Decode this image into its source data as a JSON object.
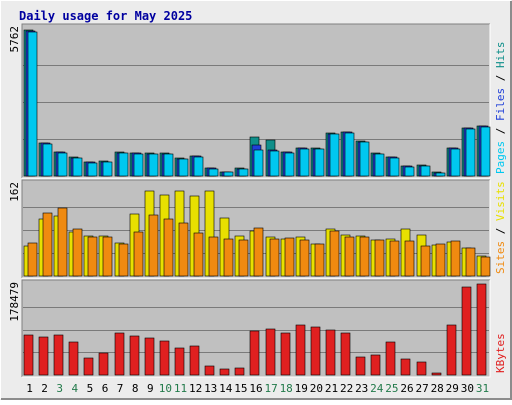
{
  "colors": {
    "frame_bg": "#ececec",
    "frame_light": "#ffffff",
    "frame_dark": "#8c8c8c",
    "panel_bg": "#c0c0c0",
    "gridline": "#7a7a7a",
    "title": "#0000a0",
    "axis_value": "#000000",
    "weekday_label": "#000000",
    "weekend_label": "#227a4a",
    "hits": "#0f8f8a",
    "files": "#1f3fd8",
    "pages": "#00c8f0",
    "visits": "#e8e000",
    "sites": "#f08a10",
    "kbytes": "#e02020",
    "label_separator": "#000000"
  },
  "chart_data": {
    "type": "bar",
    "title": "Daily usage for May 2025",
    "categories": [
      "1",
      "2",
      "3",
      "4",
      "5",
      "6",
      "7",
      "8",
      "9",
      "10",
      "11",
      "12",
      "13",
      "14",
      "15",
      "16",
      "17",
      "18",
      "19",
      "20",
      "21",
      "22",
      "23",
      "24",
      "25",
      "26",
      "27",
      "28",
      "29",
      "30",
      "31"
    ],
    "weekend_days": [
      "3",
      "4",
      "10",
      "11",
      "17",
      "18",
      "24",
      "25",
      "31"
    ],
    "grid": true,
    "panels": [
      {
        "id": "hits",
        "max_label": "5762",
        "ylim": [
          0,
          5762
        ],
        "series": [
          {
            "name": "Hits",
            "color_key": "hits",
            "values": [
              5700,
              1300,
              950,
              740,
              540,
              580,
              920,
              900,
              890,
              880,
              700,
              780,
              320,
              160,
              300,
              1500,
              1400,
              940,
              1100,
              1080,
              1660,
              1720,
              1360,
              880,
              750,
              400,
              420,
              140,
              1100,
              1880,
              1950
            ]
          },
          {
            "name": "Files",
            "color_key": "files",
            "values": [
              5650,
              1270,
              920,
              720,
              530,
              560,
              900,
              880,
              870,
              860,
              680,
              760,
              300,
              150,
              290,
              1200,
              1000,
              920,
              1080,
              1060,
              1640,
              1700,
              1340,
              860,
              730,
              380,
              400,
              130,
              1080,
              1850,
              1930
            ]
          },
          {
            "name": "Pages",
            "color_key": "pages",
            "values": [
              5600,
              1250,
              900,
              700,
              520,
              550,
              880,
              860,
              850,
              840,
              660,
              740,
              280,
              140,
              270,
              1000,
              980,
              900,
              1050,
              1040,
              1620,
              1680,
              1320,
              840,
              710,
              360,
              380,
              120,
              1060,
              1830,
              1900
            ]
          }
        ],
        "legend_labels": [
          "Pages",
          "Files",
          "Hits"
        ]
      },
      {
        "id": "visits",
        "max_label": "162",
        "ylim": [
          0,
          162
        ],
        "series": [
          {
            "name": "Visits",
            "color_key": "visits",
            "values": [
              53,
              100,
              106,
              78,
              71,
              71,
              58,
              110,
              150,
              142,
              150,
              140,
              150,
              102,
              70,
              80,
              68,
              65,
              68,
              56,
              82,
              72,
              70,
              63,
              65,
              83,
              72,
              55,
              60,
              50,
              35
            ]
          },
          {
            "name": "Sites",
            "color_key": "sites",
            "values": [
              58,
              111,
              120,
              82,
              68,
              68,
              57,
              78,
              107,
              100,
              93,
              76,
              69,
              65,
              64,
              85,
              66,
              67,
              64,
              56,
              80,
              68,
              69,
              63,
              61,
              61,
              53,
              56,
              62,
              49,
              34
            ]
          }
        ],
        "legend_labels": [
          "Sites",
          "Visits"
        ]
      },
      {
        "id": "kbytes",
        "max_label": "178479",
        "ylim": [
          0,
          178479
        ],
        "series": [
          {
            "name": "KBytes",
            "color_key": "kbytes",
            "values": [
              79000,
              75000,
              79000,
              65000,
              34000,
              44000,
              82000,
              77000,
              73000,
              66000,
              52000,
              56000,
              17000,
              12000,
              13000,
              86000,
              90000,
              82000,
              98000,
              94000,
              88000,
              82000,
              35000,
              39000,
              64000,
              32000,
              26000,
              3000,
              98000,
              172000,
              178479
            ]
          }
        ],
        "legend_labels": [
          "KBytes"
        ]
      }
    ]
  }
}
